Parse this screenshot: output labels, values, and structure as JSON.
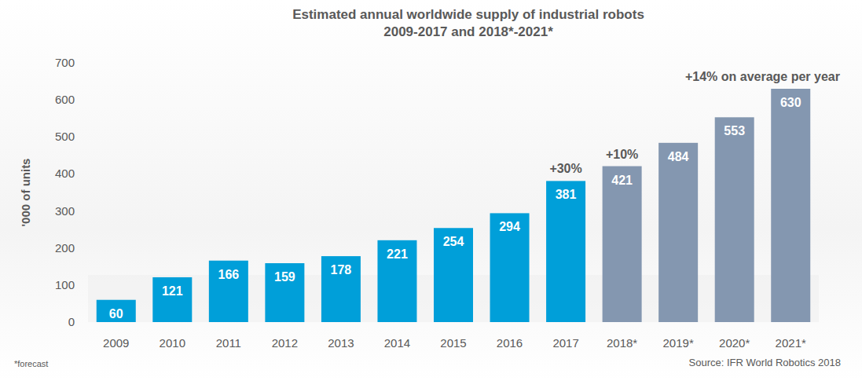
{
  "chart_data": {
    "type": "bar",
    "title": "Estimated annual worldwide supply of industrial robots",
    "subtitle": "2009-2017 and 2018*-2021*",
    "categories": [
      "2009",
      "2010",
      "2011",
      "2012",
      "2013",
      "2014",
      "2015",
      "2016",
      "2017",
      "2018*",
      "2019*",
      "2020*",
      "2021*"
    ],
    "values": [
      60,
      121,
      166,
      159,
      178,
      221,
      254,
      294,
      381,
      421,
      484,
      553,
      630
    ],
    "colors": [
      "#009fd9",
      "#009fd9",
      "#009fd9",
      "#009fd9",
      "#009fd9",
      "#009fd9",
      "#009fd9",
      "#009fd9",
      "#009fd9",
      "#8497b0",
      "#8497b0",
      "#8497b0",
      "#8497b0"
    ],
    "ylim": [
      0,
      700
    ],
    "yticks": [
      0,
      100,
      200,
      300,
      400,
      500,
      600,
      700
    ],
    "ylabel": "'000 of units",
    "grid": false,
    "data_labels": true,
    "annotations": [
      {
        "text": "+30%",
        "categories": [
          "2017"
        ]
      },
      {
        "text": "+10%",
        "categories": [
          "2018*"
        ]
      },
      {
        "text": "+14% on average per year",
        "categories": [
          "2020*",
          "2021*"
        ]
      }
    ],
    "footnote": "*forecast",
    "source": "Source: IFR World Robotics 2018"
  }
}
